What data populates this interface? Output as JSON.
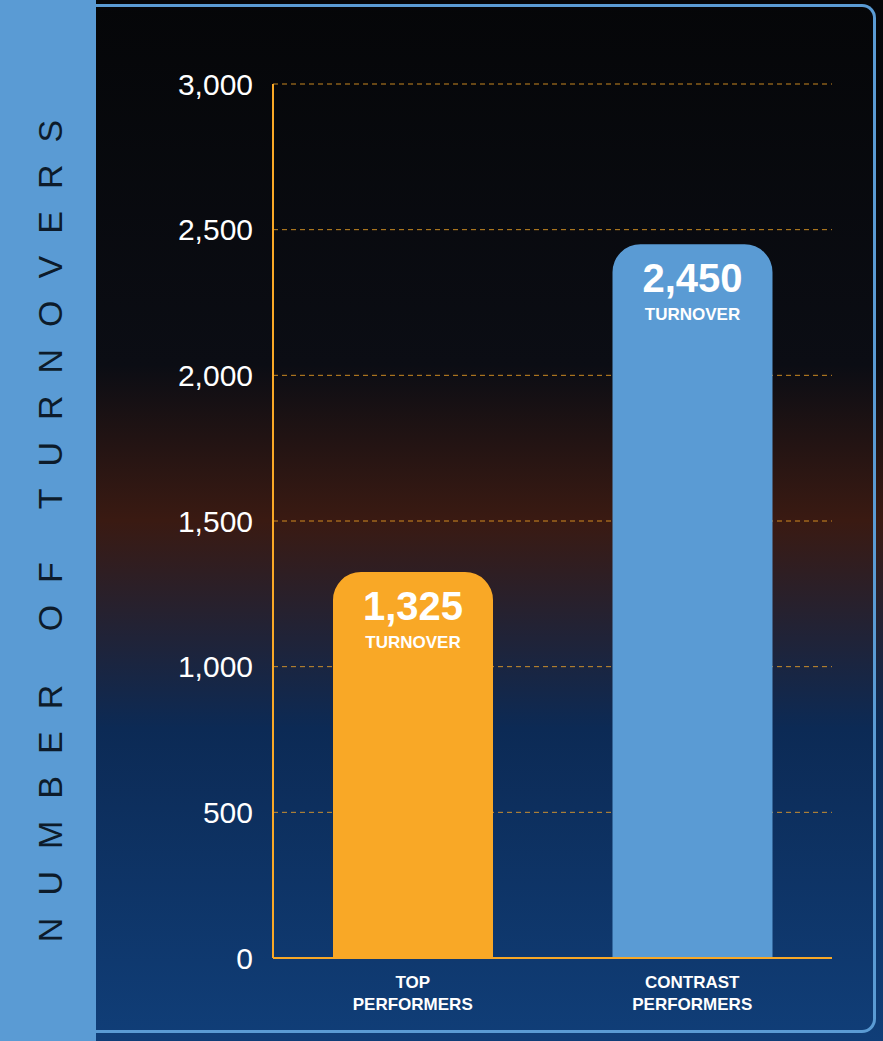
{
  "chart_data": {
    "type": "bar",
    "ylabel": "NUMBER OF TURNOVERS",
    "categories": [
      "TOP PERFORMERS",
      "CONTRAST PERFORMERS"
    ],
    "values": [
      1325,
      2450
    ],
    "value_labels": [
      "1,325",
      "2,450"
    ],
    "annotations": [
      "TURNOVER",
      "TURNOVER"
    ],
    "colors": [
      "#F9A826",
      "#5A9BD4"
    ],
    "ylim": [
      0,
      3000
    ],
    "yticks": [
      0,
      500,
      {
        "value": 1000,
        "label": "1,000"
      },
      {
        "value": 1500,
        "label": "1,500"
      },
      {
        "value": 2000,
        "label": "2,000"
      },
      {
        "value": 2500,
        "label": "2,500"
      },
      {
        "value": 3000,
        "label": "3,000"
      }
    ],
    "grid": true,
    "data_labels": true
  }
}
